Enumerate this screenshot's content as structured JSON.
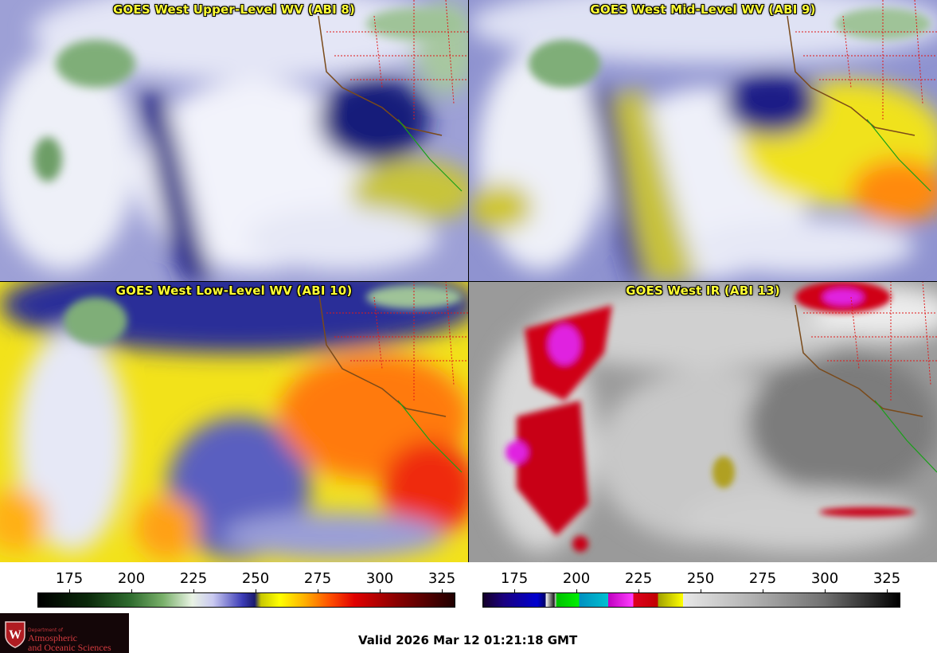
{
  "panels": {
    "upper_wv": {
      "title": "GOES West Upper-Level WV (ABI 8)"
    },
    "mid_wv": {
      "title": "GOES West Mid-Level WV (ABI 9)"
    },
    "low_wv": {
      "title": "GOES West Low-Level WV (ABI 10)"
    },
    "ir": {
      "title": "GOES West IR (ABI 13)"
    }
  },
  "scales": {
    "wv": {
      "ticks": [
        "175",
        "200",
        "225",
        "250",
        "275",
        "300",
        "325"
      ]
    },
    "ir": {
      "ticks": [
        "175",
        "200",
        "225",
        "250",
        "275",
        "300",
        "325"
      ]
    }
  },
  "footer": {
    "logo": {
      "dept": "Department of",
      "line1": "Atmospheric",
      "line2": "and Oceanic Sciences"
    },
    "valid": "Valid 2026 Mar 12 01:21:18 GMT"
  }
}
